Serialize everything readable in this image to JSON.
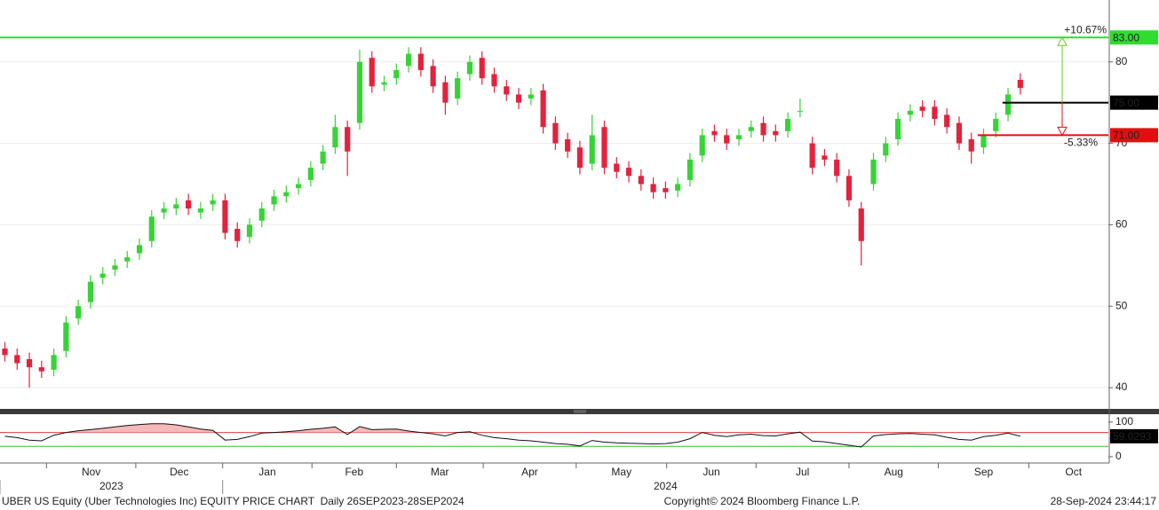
{
  "chart_data": {
    "type": "candlestick",
    "categories": [
      null,
      null,
      null,
      null,
      null,
      null,
      null,
      null,
      null,
      null,
      null,
      null,
      null,
      null,
      null,
      null,
      null,
      null,
      null,
      null,
      null,
      null,
      null,
      null,
      null,
      null,
      null,
      null,
      null,
      null,
      null,
      null,
      null,
      null,
      null,
      null,
      null,
      null,
      null,
      null,
      null,
      null,
      null,
      null,
      null,
      null,
      null,
      null,
      null,
      null,
      null,
      null,
      null,
      null,
      null,
      null,
      null,
      null,
      null,
      null,
      null,
      null,
      null,
      null,
      null,
      null,
      null,
      null,
      null,
      null,
      null,
      null,
      null,
      null,
      null,
      null,
      null,
      null,
      null,
      null,
      null,
      null,
      null,
      null
    ],
    "open": [
      44.8,
      44,
      43.5,
      42.5,
      42.2,
      44.5,
      48.5,
      50.5,
      53.5,
      54.5,
      55.5,
      56.5,
      58,
      61.5,
      62,
      63,
      61.5,
      62.5,
      63,
      59.5,
      58.5,
      60.5,
      62.5,
      63.5,
      64.5,
      65.5,
      67.5,
      69.5,
      72,
      72.5,
      80.5,
      77.2,
      78,
      79.5,
      81,
      79.5,
      77.5,
      75.5,
      78.5,
      80.5,
      78.5,
      77,
      76,
      75.5,
      76.5,
      72.5,
      70.5,
      69.5,
      67.5,
      72,
      67.5,
      67,
      66,
      65,
      64.5,
      64.2,
      65.5,
      68.5,
      71.5,
      71,
      70.5,
      71.5,
      72.5,
      71.5,
      71.5,
      74,
      70,
      68.5,
      68,
      66,
      62,
      65,
      68.5,
      70.5,
      73.5,
      74.5,
      74.5,
      73.5,
      72.5,
      70.5,
      69.5,
      71.5,
      73.5,
      77.8
    ],
    "high": [
      45.6,
      44.8,
      44.3,
      43.3,
      44.8,
      48.8,
      50.8,
      53.8,
      54.8,
      55.8,
      56.8,
      58.3,
      61.8,
      62.8,
      63.3,
      63.8,
      62.8,
      63.8,
      63.8,
      60.3,
      60.8,
      62.8,
      64.3,
      64.8,
      65.8,
      67.8,
      69.8,
      73.5,
      72.8,
      81.5,
      81.3,
      78.3,
      79.8,
      81.8,
      81.8,
      80.3,
      78.3,
      78.8,
      80.8,
      81.3,
      79.3,
      77.8,
      76.8,
      76.8,
      77.3,
      73.3,
      71.3,
      70.3,
      73.5,
      72.8,
      68.3,
      67.8,
      66.8,
      65.8,
      65.3,
      65.8,
      68.8,
      71.8,
      72.3,
      71.8,
      71.8,
      72.8,
      73.3,
      72.3,
      73.8,
      75.5,
      70.8,
      69.3,
      68.8,
      66.8,
      62.8,
      68.8,
      70.8,
      73.8,
      74.8,
      75.3,
      75.3,
      74.3,
      73.3,
      71.3,
      71.8,
      73.8,
      76.8,
      78.6
    ],
    "low": [
      43.2,
      42.2,
      40,
      41.2,
      41.4,
      43.7,
      47.7,
      49.7,
      52.7,
      53.7,
      54.7,
      55.7,
      57.2,
      60.7,
      61.2,
      61.2,
      60.7,
      61.7,
      58.2,
      57.2,
      57.7,
      59.7,
      61.7,
      62.7,
      63.7,
      64.7,
      66.7,
      68.7,
      66,
      71.7,
      76.2,
      76.4,
      77.2,
      78.7,
      78.2,
      76.2,
      73.5,
      74.7,
      77.7,
      77.2,
      76.2,
      75.2,
      74.2,
      74.7,
      71.2,
      69.2,
      68.2,
      66.2,
      66.7,
      66.2,
      65.7,
      65.2,
      64.2,
      63.2,
      63.2,
      63.4,
      64.7,
      67.7,
      70.2,
      69.2,
      69.7,
      70.7,
      70.2,
      70.2,
      70.7,
      73.2,
      66.2,
      67.2,
      65.2,
      62.2,
      55,
      64.2,
      67.7,
      69.7,
      72.7,
      73.2,
      72.2,
      71.2,
      69.2,
      67.5,
      68.7,
      70.7,
      72.7,
      76
    ],
    "close": [
      44,
      43,
      42.5,
      42,
      44,
      48,
      50,
      53,
      54,
      55,
      56,
      57.5,
      61,
      62,
      62.5,
      62,
      62,
      63,
      59,
      58,
      60,
      62,
      63.5,
      64,
      65,
      67,
      69,
      72,
      69,
      80,
      77,
      77.5,
      79,
      81,
      79,
      77,
      75,
      78,
      80,
      78,
      77,
      76,
      75,
      76,
      72,
      70,
      69,
      67,
      71,
      67,
      66.5,
      66,
      65,
      64,
      64,
      65,
      68,
      71,
      71,
      70,
      71,
      72,
      71,
      71,
      73,
      74,
      67,
      68,
      66,
      63,
      58,
      68,
      70,
      73,
      74,
      74,
      73,
      72,
      70,
      69,
      71,
      73,
      76,
      76.8
    ],
    "up_color": "#36d436",
    "down_color": "#e3223c",
    "xlim": [
      -0.4,
      90.2
    ],
    "ylim": [
      37.5,
      87.6
    ],
    "yticks": [
      40,
      50,
      60,
      70,
      80
    ],
    "grid": true,
    "xticks": [
      {
        "value": 3.4,
        "label": "Nov"
      },
      {
        "value": 10.7,
        "label": "Dec"
      },
      {
        "value": 17.8,
        "label": "Jan"
      },
      {
        "value": 25.1,
        "label": "Feb"
      },
      {
        "value": 32,
        "label": "Mar"
      },
      {
        "value": 39.1,
        "label": "Apr"
      },
      {
        "value": 46.7,
        "label": "May"
      },
      {
        "value": 54.1,
        "label": "Jun"
      },
      {
        "value": 61.4,
        "label": "Jul"
      },
      {
        "value": 69,
        "label": "Aug"
      },
      {
        "value": 76.3,
        "label": "Sep"
      },
      {
        "value": 83.7,
        "label": "Oct"
      }
    ],
    "x2ticks": [
      {
        "value": -0.4,
        "label": "2023"
      },
      {
        "value": 17.8,
        "label": "2024"
      }
    ],
    "hlines": [
      {
        "value": 83,
        "label": "83.00",
        "color": "#2fdc2f"
      },
      {
        "value": 75,
        "label": "75.00",
        "color": "#000000"
      },
      {
        "value": 71,
        "label": "71.00",
        "color": "#e01010"
      }
    ],
    "annotations": [
      {
        "text": "+10.67%",
        "color": "#66cc22"
      },
      {
        "text": "-5.33%",
        "color": "#e01010"
      }
    ],
    "rsi": {
      "values": [
        59,
        55,
        48,
        46,
        62,
        70,
        75,
        78,
        82,
        86,
        90,
        93,
        95,
        95,
        92,
        86,
        80,
        76,
        48,
        50,
        58,
        68,
        70,
        72,
        75,
        79,
        82,
        86,
        64,
        87,
        78,
        79,
        80,
        74,
        70,
        66,
        60,
        70,
        72,
        62,
        55,
        52,
        48,
        46,
        42,
        38,
        36,
        31,
        47,
        42,
        40,
        39,
        38,
        37,
        38,
        42,
        52,
        70,
        62,
        58,
        63,
        65,
        61,
        60,
        66,
        71,
        45,
        43,
        38,
        33,
        28,
        60,
        64,
        66,
        67,
        65,
        63,
        56,
        50,
        48,
        58,
        62,
        68,
        59.0293
      ],
      "ylim": [
        -18,
        120
      ],
      "yticks": [
        0,
        100
      ],
      "levels": [
        {
          "value": 70,
          "color": "#e03030"
        },
        {
          "value": 30,
          "color": "#30c030"
        }
      ],
      "fill_color": "#f5b9b9"
    }
  },
  "footer": {
    "left": "UBER US Equity (Uber Technologies Inc) EQUITY PRICE CHART  Daily 26SEP2023-28SEP2024",
    "center": "Copyright© 2024 Bloomberg Finance L.P.",
    "right": "28-Sep-2024 23:44:17"
  }
}
